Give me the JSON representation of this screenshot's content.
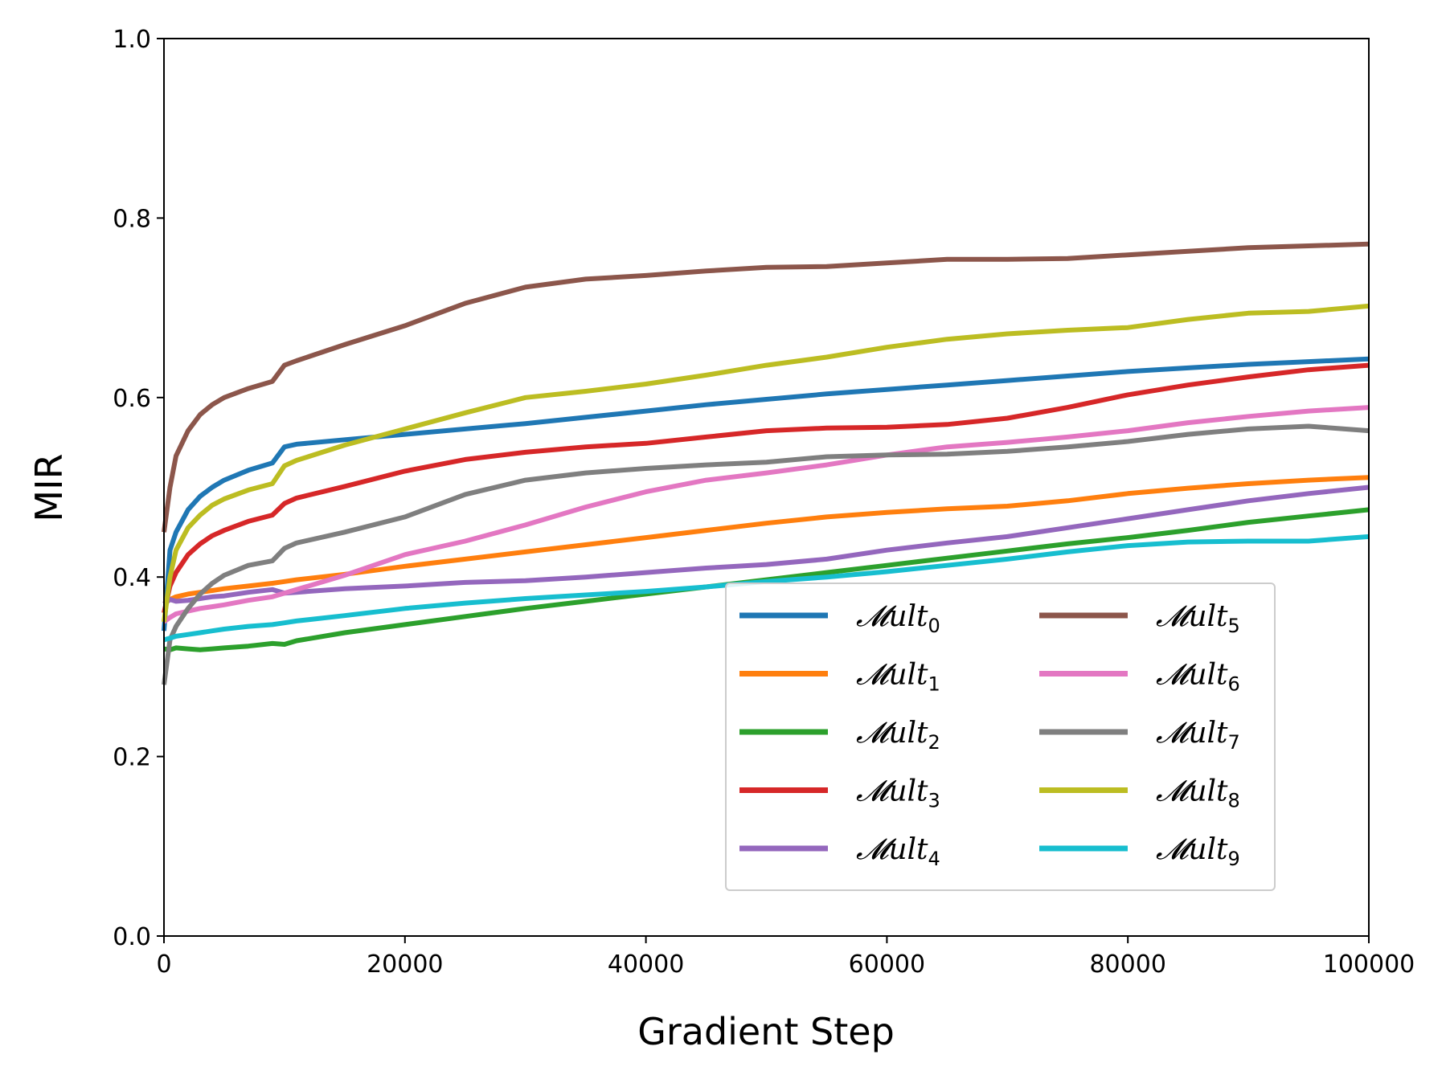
{
  "chart_data": {
    "type": "line",
    "xlabel": "Gradient Step",
    "ylabel": "MIR",
    "xlim": [
      0,
      100000
    ],
    "ylim": [
      0.0,
      1.0
    ],
    "x_ticks": [
      "0",
      "20000",
      "40000",
      "60000",
      "80000",
      "100000"
    ],
    "y_ticks": [
      "0.0",
      "0.2",
      "0.4",
      "0.6",
      "0.8",
      "1.0"
    ],
    "legend_position": "lower-right",
    "legend_columns": 2,
    "x": [
      0,
      500,
      1000,
      2000,
      3000,
      4000,
      5000,
      7000,
      9000,
      10000,
      11000,
      15000,
      20000,
      25000,
      30000,
      35000,
      40000,
      45000,
      50000,
      55000,
      60000,
      65000,
      70000,
      75000,
      80000,
      85000,
      90000,
      95000,
      100000
    ],
    "series": [
      {
        "name": "𝓜ult",
        "sub": "0",
        "color": "#1f77b4",
        "values": [
          0.34,
          0.43,
          0.45,
          0.475,
          0.49,
          0.5,
          0.508,
          0.519,
          0.527,
          0.545,
          0.548,
          0.553,
          0.559,
          0.565,
          0.571,
          0.578,
          0.585,
          0.592,
          0.598,
          0.604,
          0.609,
          0.614,
          0.619,
          0.624,
          0.629,
          0.633,
          0.637,
          0.64,
          0.643
        ]
      },
      {
        "name": "𝓜ult",
        "sub": "1",
        "color": "#ff7f0e",
        "values": [
          0.37,
          0.375,
          0.378,
          0.381,
          0.383,
          0.385,
          0.387,
          0.39,
          0.393,
          0.395,
          0.397,
          0.403,
          0.412,
          0.42,
          0.428,
          0.436,
          0.444,
          0.452,
          0.46,
          0.467,
          0.472,
          0.476,
          0.479,
          0.485,
          0.493,
          0.499,
          0.504,
          0.508,
          0.511
        ]
      },
      {
        "name": "𝓜ult",
        "sub": "2",
        "color": "#2ca02c",
        "values": [
          0.32,
          0.319,
          0.321,
          0.32,
          0.319,
          0.32,
          0.321,
          0.323,
          0.326,
          0.325,
          0.329,
          0.338,
          0.347,
          0.356,
          0.365,
          0.373,
          0.381,
          0.389,
          0.397,
          0.405,
          0.413,
          0.421,
          0.429,
          0.437,
          0.444,
          0.452,
          0.461,
          0.468,
          0.475
        ]
      },
      {
        "name": "𝓜ult",
        "sub": "3",
        "color": "#d62728",
        "values": [
          0.36,
          0.39,
          0.405,
          0.425,
          0.437,
          0.446,
          0.452,
          0.462,
          0.469,
          0.482,
          0.488,
          0.501,
          0.518,
          0.531,
          0.539,
          0.545,
          0.549,
          0.556,
          0.563,
          0.566,
          0.567,
          0.57,
          0.577,
          0.589,
          0.603,
          0.614,
          0.623,
          0.631,
          0.636
        ]
      },
      {
        "name": "𝓜ult",
        "sub": "4",
        "color": "#9467bd",
        "values": [
          0.37,
          0.375,
          0.373,
          0.374,
          0.376,
          0.378,
          0.379,
          0.383,
          0.386,
          0.382,
          0.383,
          0.387,
          0.39,
          0.394,
          0.396,
          0.4,
          0.405,
          0.41,
          0.414,
          0.42,
          0.43,
          0.438,
          0.445,
          0.455,
          0.465,
          0.475,
          0.485,
          0.493,
          0.5
        ]
      },
      {
        "name": "𝓜ult",
        "sub": "5",
        "color": "#8c564b",
        "values": [
          0.45,
          0.5,
          0.535,
          0.563,
          0.581,
          0.592,
          0.6,
          0.61,
          0.618,
          0.636,
          0.641,
          0.659,
          0.68,
          0.705,
          0.723,
          0.732,
          0.736,
          0.741,
          0.745,
          0.746,
          0.75,
          0.754,
          0.754,
          0.755,
          0.759,
          0.763,
          0.767,
          0.769,
          0.771
        ]
      },
      {
        "name": "𝓜ult",
        "sub": "6",
        "color": "#e377c2",
        "values": [
          0.35,
          0.355,
          0.359,
          0.362,
          0.365,
          0.367,
          0.369,
          0.374,
          0.378,
          0.382,
          0.386,
          0.402,
          0.425,
          0.44,
          0.458,
          0.478,
          0.495,
          0.508,
          0.516,
          0.525,
          0.536,
          0.545,
          0.55,
          0.556,
          0.563,
          0.572,
          0.579,
          0.585,
          0.589
        ]
      },
      {
        "name": "𝓜ult",
        "sub": "7",
        "color": "#7f7f7f",
        "values": [
          0.28,
          0.33,
          0.345,
          0.365,
          0.381,
          0.393,
          0.402,
          0.413,
          0.418,
          0.432,
          0.438,
          0.45,
          0.467,
          0.492,
          0.508,
          0.516,
          0.521,
          0.525,
          0.528,
          0.534,
          0.536,
          0.537,
          0.54,
          0.545,
          0.551,
          0.559,
          0.565,
          0.568,
          0.563
        ]
      },
      {
        "name": "𝓜ult",
        "sub": "8",
        "color": "#bcbd22",
        "values": [
          0.35,
          0.4,
          0.43,
          0.455,
          0.469,
          0.48,
          0.487,
          0.497,
          0.504,
          0.524,
          0.53,
          0.547,
          0.565,
          0.583,
          0.6,
          0.607,
          0.615,
          0.625,
          0.636,
          0.645,
          0.656,
          0.665,
          0.671,
          0.675,
          0.678,
          0.687,
          0.694,
          0.696,
          0.702
        ]
      },
      {
        "name": "𝓜ult",
        "sub": "9",
        "color": "#17becf",
        "values": [
          0.33,
          0.332,
          0.334,
          0.336,
          0.338,
          0.34,
          0.342,
          0.345,
          0.347,
          0.349,
          0.351,
          0.357,
          0.365,
          0.371,
          0.376,
          0.38,
          0.384,
          0.389,
          0.395,
          0.4,
          0.406,
          0.413,
          0.42,
          0.428,
          0.435,
          0.439,
          0.44,
          0.44,
          0.445
        ]
      }
    ]
  }
}
